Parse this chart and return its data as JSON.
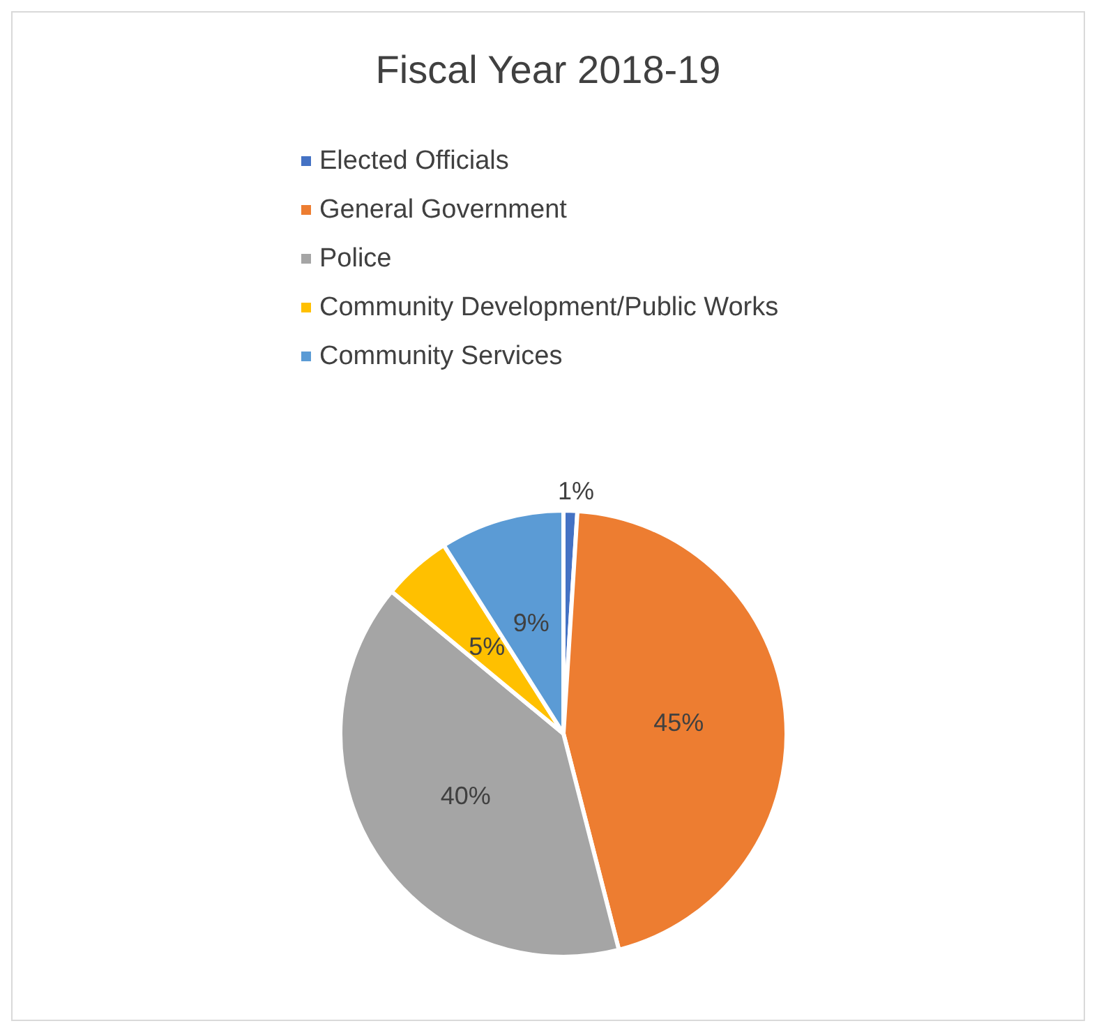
{
  "chart_data": {
    "type": "pie",
    "title": "Fiscal Year 2018-19",
    "categories": [
      "Elected Officials",
      "General Government",
      "Police",
      "Community Development/Public Works",
      "Community Services"
    ],
    "values": [
      1,
      45,
      40,
      5,
      9
    ],
    "colors": [
      "#4472c4",
      "#ed7d31",
      "#a5a5a5",
      "#ffc000",
      "#5b9bd5"
    ],
    "value_labels": [
      "1%",
      "45%",
      "40%",
      "5%",
      "9%"
    ],
    "legend": "top"
  }
}
